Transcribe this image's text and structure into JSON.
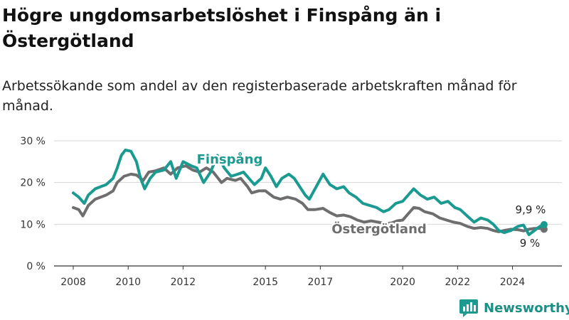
{
  "title": "Högre ungdomsarbetslöshet i Finspång än i Östergötland",
  "subtitle": "Arbetssökande som andel av den registerbaserade arbetskraften månad för månad.",
  "brand": {
    "name": "Newsworthy",
    "icon": "bar-chart-logo-icon",
    "color": "#1a9a90"
  },
  "chart_data": {
    "type": "line",
    "x_ticks": [
      "2008",
      "2010",
      "2012",
      "2015",
      "2017",
      "2020",
      "2022",
      "2024"
    ],
    "x_tick_years": [
      2008,
      2010,
      2012,
      2015,
      2017,
      2020,
      2022,
      2024
    ],
    "y_ticks": [
      "0 %",
      "10 %",
      "20 %",
      "30 %"
    ],
    "y_tick_values": [
      0,
      10,
      20,
      30
    ],
    "xlim": [
      2007.3,
      2025.8
    ],
    "ylim": [
      0,
      30
    ],
    "grid": true,
    "series": [
      {
        "name": "Östergötland",
        "color": "#6e6e6e",
        "end_label": "9 %",
        "points": [
          [
            2008.0,
            14.0
          ],
          [
            2008.2,
            13.5
          ],
          [
            2008.35,
            12.0
          ],
          [
            2008.55,
            14.5
          ],
          [
            2008.8,
            16.0
          ],
          [
            2009.0,
            16.5
          ],
          [
            2009.2,
            17.0
          ],
          [
            2009.45,
            18.0
          ],
          [
            2009.6,
            20.0
          ],
          [
            2009.85,
            21.5
          ],
          [
            2010.1,
            22.0
          ],
          [
            2010.3,
            21.8
          ],
          [
            2010.55,
            20.5
          ],
          [
            2010.75,
            22.5
          ],
          [
            2011.0,
            22.8
          ],
          [
            2011.3,
            23.5
          ],
          [
            2011.55,
            22.0
          ],
          [
            2011.8,
            23.5
          ],
          [
            2012.1,
            24.0
          ],
          [
            2012.35,
            23.0
          ],
          [
            2012.6,
            22.5
          ],
          [
            2012.85,
            23.5
          ],
          [
            2013.1,
            22.5
          ],
          [
            2013.4,
            20.0
          ],
          [
            2013.6,
            21.0
          ],
          [
            2013.9,
            20.5
          ],
          [
            2014.1,
            21.0
          ],
          [
            2014.35,
            19.0
          ],
          [
            2014.5,
            17.5
          ],
          [
            2014.75,
            18.0
          ],
          [
            2015.0,
            18.0
          ],
          [
            2015.3,
            16.5
          ],
          [
            2015.55,
            16.0
          ],
          [
            2015.8,
            16.5
          ],
          [
            2016.1,
            16.0
          ],
          [
            2016.35,
            15.0
          ],
          [
            2016.55,
            13.5
          ],
          [
            2016.8,
            13.5
          ],
          [
            2017.1,
            13.8
          ],
          [
            2017.35,
            12.8
          ],
          [
            2017.6,
            12.0
          ],
          [
            2017.85,
            12.2
          ],
          [
            2018.1,
            11.8
          ],
          [
            2018.35,
            11.0
          ],
          [
            2018.6,
            10.5
          ],
          [
            2018.85,
            10.8
          ],
          [
            2019.1,
            10.5
          ],
          [
            2019.35,
            10.2
          ],
          [
            2019.6,
            10.3
          ],
          [
            2019.8,
            10.8
          ],
          [
            2020.0,
            11.0
          ],
          [
            2020.2,
            12.5
          ],
          [
            2020.4,
            14.0
          ],
          [
            2020.6,
            13.8
          ],
          [
            2020.8,
            13.0
          ],
          [
            2021.1,
            12.5
          ],
          [
            2021.35,
            11.5
          ],
          [
            2021.6,
            11.0
          ],
          [
            2021.85,
            10.5
          ],
          [
            2022.1,
            10.2
          ],
          [
            2022.35,
            9.5
          ],
          [
            2022.6,
            9.0
          ],
          [
            2022.85,
            9.2
          ],
          [
            2023.1,
            9.0
          ],
          [
            2023.3,
            8.5
          ],
          [
            2023.5,
            8.2
          ],
          [
            2023.7,
            8.5
          ],
          [
            2023.95,
            8.8
          ],
          [
            2024.2,
            8.7
          ],
          [
            2024.4,
            8.4
          ],
          [
            2024.6,
            8.8
          ],
          [
            2024.8,
            9.0
          ],
          [
            2025.0,
            9.0
          ],
          [
            2025.15,
            8.8
          ]
        ]
      },
      {
        "name": "Finspång",
        "color": "#1a9a90",
        "end_label": "9,9 %",
        "points": [
          [
            2008.0,
            17.5
          ],
          [
            2008.2,
            16.5
          ],
          [
            2008.4,
            15.0
          ],
          [
            2008.55,
            17.0
          ],
          [
            2008.8,
            18.5
          ],
          [
            2009.0,
            19.0
          ],
          [
            2009.2,
            19.5
          ],
          [
            2009.45,
            21.0
          ],
          [
            2009.6,
            23.5
          ],
          [
            2009.75,
            26.5
          ],
          [
            2009.9,
            27.8
          ],
          [
            2010.1,
            27.5
          ],
          [
            2010.3,
            25.0
          ],
          [
            2010.45,
            21.0
          ],
          [
            2010.6,
            18.5
          ],
          [
            2010.8,
            21.0
          ],
          [
            2011.0,
            22.5
          ],
          [
            2011.3,
            23.0
          ],
          [
            2011.55,
            25.0
          ],
          [
            2011.75,
            21.0
          ],
          [
            2012.0,
            25.0
          ],
          [
            2012.3,
            24.0
          ],
          [
            2012.5,
            23.5
          ],
          [
            2012.75,
            20.0
          ],
          [
            2013.0,
            22.5
          ],
          [
            2013.25,
            26.5
          ],
          [
            2013.5,
            23.5
          ],
          [
            2013.75,
            21.5
          ],
          [
            2014.0,
            22.0
          ],
          [
            2014.2,
            22.5
          ],
          [
            2014.4,
            21.0
          ],
          [
            2014.6,
            19.5
          ],
          [
            2014.85,
            21.0
          ],
          [
            2015.0,
            23.5
          ],
          [
            2015.2,
            21.5
          ],
          [
            2015.4,
            19.0
          ],
          [
            2015.6,
            21.0
          ],
          [
            2015.85,
            22.0
          ],
          [
            2016.05,
            21.0
          ],
          [
            2016.25,
            19.0
          ],
          [
            2016.45,
            17.0
          ],
          [
            2016.6,
            16.0
          ],
          [
            2016.85,
            19.0
          ],
          [
            2017.1,
            22.0
          ],
          [
            2017.35,
            19.5
          ],
          [
            2017.6,
            18.5
          ],
          [
            2017.85,
            19.0
          ],
          [
            2018.05,
            17.5
          ],
          [
            2018.3,
            16.5
          ],
          [
            2018.55,
            15.0
          ],
          [
            2018.8,
            14.5
          ],
          [
            2019.05,
            14.0
          ],
          [
            2019.3,
            13.0
          ],
          [
            2019.5,
            13.5
          ],
          [
            2019.75,
            15.0
          ],
          [
            2020.0,
            15.5
          ],
          [
            2020.2,
            17.0
          ],
          [
            2020.4,
            18.5
          ],
          [
            2020.65,
            17.0
          ],
          [
            2020.9,
            16.0
          ],
          [
            2021.15,
            16.5
          ],
          [
            2021.4,
            15.0
          ],
          [
            2021.65,
            15.5
          ],
          [
            2021.9,
            14.0
          ],
          [
            2022.1,
            13.5
          ],
          [
            2022.35,
            12.0
          ],
          [
            2022.6,
            10.5
          ],
          [
            2022.85,
            11.5
          ],
          [
            2023.1,
            11.0
          ],
          [
            2023.3,
            10.0
          ],
          [
            2023.5,
            8.5
          ],
          [
            2023.7,
            8.0
          ],
          [
            2023.95,
            8.5
          ],
          [
            2024.2,
            9.5
          ],
          [
            2024.4,
            9.8
          ],
          [
            2024.6,
            7.5
          ],
          [
            2024.8,
            8.5
          ],
          [
            2025.0,
            9.5
          ],
          [
            2025.15,
            9.9
          ]
        ]
      }
    ]
  }
}
